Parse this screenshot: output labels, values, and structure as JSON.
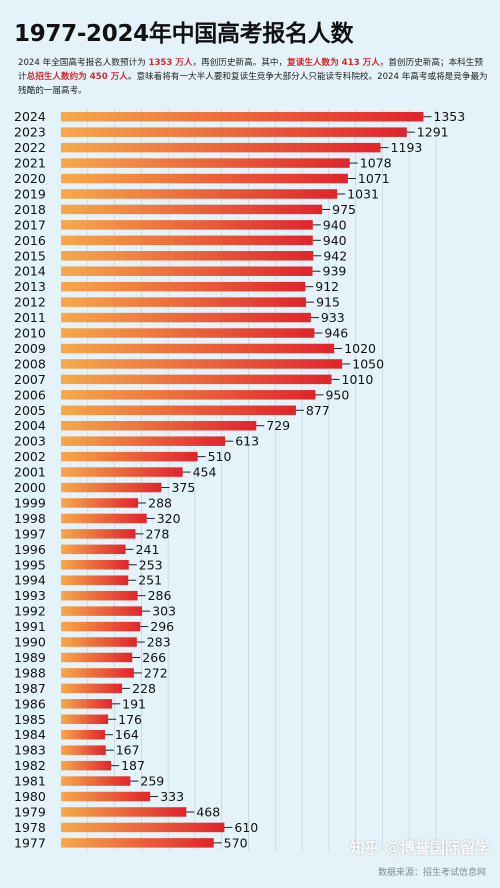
{
  "title": "1977-2024年中国高考报名人数",
  "description": {
    "p1": "2024 年全国高考报名人数预计为 ",
    "h1": "1353 万人",
    "p2": "，再创历史新高。其中，",
    "h2": "复读生人数为 413 万人",
    "p3": "，首创历史新高；本科生预计",
    "h3": "总招生人数约为 450 万人",
    "p4": "。意味着将有一大半人要和复读生竞争大部分人只能读专科院校。2024 年高考或将是竞争最为残酷的一届高考。"
  },
  "watermark": "知乎 @博誉国际留学",
  "footer": "数据来源：招生考试信息网",
  "colors": {
    "bar_start": "#f6a94a",
    "bar_end": "#e0242c",
    "background": "#e4f3fa",
    "highlight": "#d4282a"
  },
  "chart_data": {
    "type": "bar",
    "orientation": "horizontal",
    "title": "1977-2024年中国高考报名人数",
    "categories": [
      "2024",
      "2023",
      "2022",
      "2021",
      "2020",
      "2019",
      "2018",
      "2017",
      "2016",
      "2015",
      "2014",
      "2013",
      "2012",
      "2011",
      "2010",
      "2009",
      "2008",
      "2007",
      "2006",
      "2005",
      "2004",
      "2003",
      "2002",
      "2001",
      "2000",
      "1999",
      "1998",
      "1997",
      "1996",
      "1995",
      "1994",
      "1993",
      "1992",
      "1991",
      "1990",
      "1989",
      "1988",
      "1987",
      "1986",
      "1985",
      "1984",
      "1983",
      "1982",
      "1981",
      "1980",
      "1979",
      "1978",
      "1977"
    ],
    "values": [
      1353,
      1291,
      1193,
      1078,
      1071,
      1031,
      975,
      940,
      940,
      942,
      939,
      912,
      915,
      933,
      946,
      1020,
      1050,
      1010,
      950,
      877,
      729,
      613,
      510,
      454,
      375,
      288,
      320,
      278,
      241,
      253,
      251,
      286,
      303,
      296,
      283,
      266,
      272,
      228,
      191,
      176,
      164,
      167,
      187,
      259,
      333,
      468,
      610,
      570
    ],
    "xlim": [
      0,
      1400
    ],
    "grid": true
  }
}
